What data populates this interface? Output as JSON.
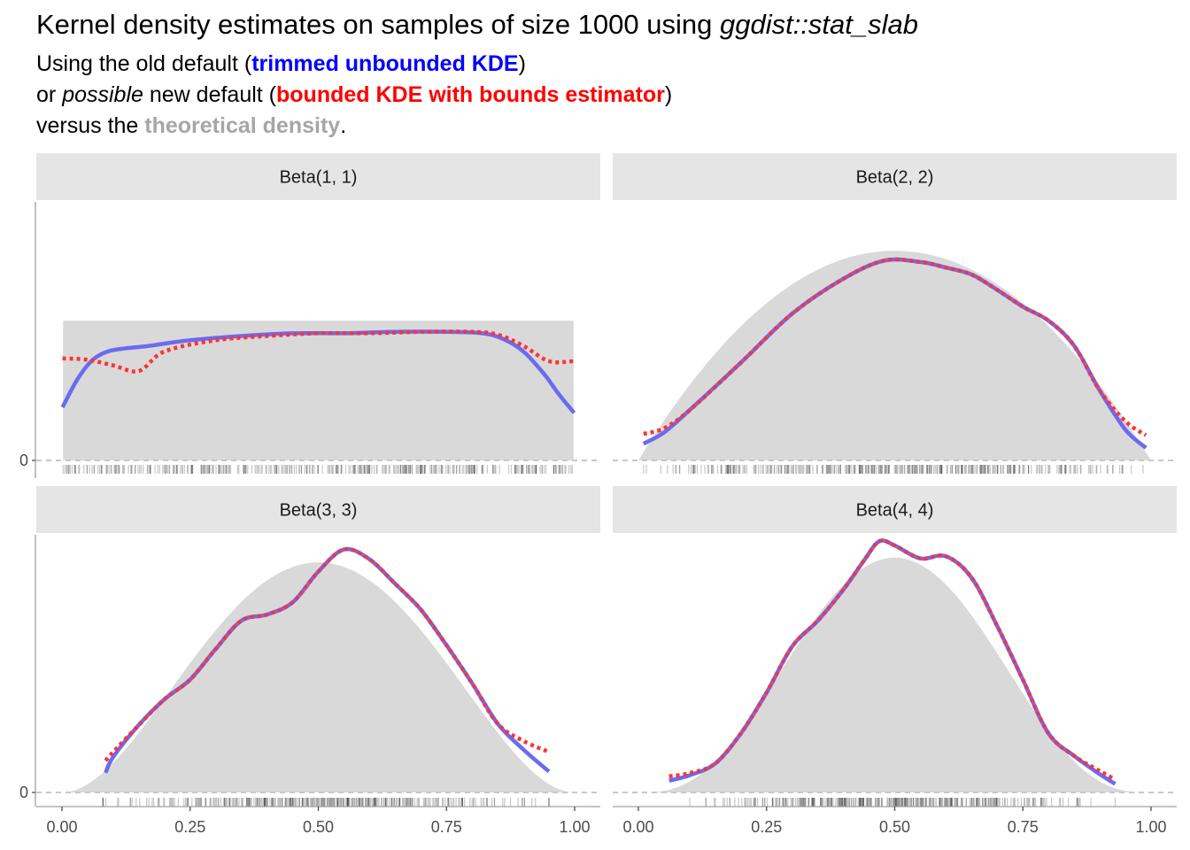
{
  "title": {
    "prefix": "Kernel density estimates on samples of size 1000 using ",
    "code": "ggdist::stat_slab"
  },
  "subtitle": {
    "line1_a": "Using the old default (",
    "line1_b": "trimmed unbounded KDE",
    "line1_c": ")",
    "line2_a": "or ",
    "line2_b": "possible",
    "line2_c": " new default (",
    "line2_d": "bounded KDE with bounds estimator",
    "line2_e": ")",
    "line3_a": "versus the ",
    "line3_b": "theoretical density",
    "line3_c": "."
  },
  "colors": {
    "theoretical": "#d9d9d9",
    "unbounded": "#6b6bf0",
    "bounded": "#ff3333",
    "strip": "#e5e5e5",
    "rug": "#000000"
  },
  "chart_data": {
    "type": "area",
    "x_ticks": [
      0,
      0.25,
      0.5,
      0.75,
      1
    ],
    "x_tick_labels": [
      "0.00",
      "0.25",
      "0.50",
      "0.75",
      "1.00"
    ],
    "xlim": [
      0,
      1
    ],
    "y_tick_label": "0",
    "legend": "none (encoded in subtitle colors)",
    "panels": [
      {
        "label": "Beta(1, 1)",
        "a": 1,
        "b": 1,
        "ymax": 1.85,
        "sample_range": [
          0.001,
          0.999
        ],
        "unbounded": [
          [
            0.001,
            0.38
          ],
          [
            0.03,
            0.58
          ],
          [
            0.06,
            0.72
          ],
          [
            0.09,
            0.78
          ],
          [
            0.12,
            0.8
          ],
          [
            0.17,
            0.82
          ],
          [
            0.25,
            0.86
          ],
          [
            0.35,
            0.89
          ],
          [
            0.45,
            0.91
          ],
          [
            0.55,
            0.91
          ],
          [
            0.65,
            0.92
          ],
          [
            0.75,
            0.92
          ],
          [
            0.82,
            0.91
          ],
          [
            0.86,
            0.87
          ],
          [
            0.9,
            0.78
          ],
          [
            0.94,
            0.62
          ],
          [
            0.97,
            0.47
          ],
          [
            0.999,
            0.34
          ]
        ],
        "bounded": [
          [
            0.001,
            0.73
          ],
          [
            0.05,
            0.72
          ],
          [
            0.1,
            0.68
          ],
          [
            0.15,
            0.64
          ],
          [
            0.2,
            0.78
          ],
          [
            0.3,
            0.86
          ],
          [
            0.4,
            0.89
          ],
          [
            0.5,
            0.91
          ],
          [
            0.6,
            0.91
          ],
          [
            0.7,
            0.92
          ],
          [
            0.8,
            0.92
          ],
          [
            0.85,
            0.9
          ],
          [
            0.9,
            0.82
          ],
          [
            0.95,
            0.71
          ],
          [
            0.999,
            0.71
          ]
        ]
      },
      {
        "label": "Beta(2, 2)",
        "a": 2,
        "b": 2,
        "ymax": 1.85,
        "sample_range": [
          0.01,
          0.99
        ],
        "unbounded": [
          [
            0.01,
            0.12
          ],
          [
            0.05,
            0.2
          ],
          [
            0.1,
            0.36
          ],
          [
            0.2,
            0.7
          ],
          [
            0.3,
            1.05
          ],
          [
            0.4,
            1.3
          ],
          [
            0.48,
            1.43
          ],
          [
            0.55,
            1.42
          ],
          [
            0.6,
            1.38
          ],
          [
            0.65,
            1.33
          ],
          [
            0.7,
            1.22
          ],
          [
            0.75,
            1.1
          ],
          [
            0.8,
            1.0
          ],
          [
            0.85,
            0.82
          ],
          [
            0.9,
            0.5
          ],
          [
            0.95,
            0.22
          ],
          [
            0.99,
            0.09
          ]
        ],
        "bounded": [
          [
            0.01,
            0.19
          ],
          [
            0.05,
            0.23
          ],
          [
            0.1,
            0.36
          ],
          [
            0.2,
            0.7
          ],
          [
            0.3,
            1.05
          ],
          [
            0.4,
            1.3
          ],
          [
            0.48,
            1.43
          ],
          [
            0.55,
            1.42
          ],
          [
            0.6,
            1.38
          ],
          [
            0.65,
            1.33
          ],
          [
            0.7,
            1.22
          ],
          [
            0.75,
            1.1
          ],
          [
            0.8,
            1.0
          ],
          [
            0.85,
            0.82
          ],
          [
            0.9,
            0.5
          ],
          [
            0.95,
            0.28
          ],
          [
            0.99,
            0.18
          ]
        ]
      },
      {
        "label": "Beta(3, 3)",
        "a": 3,
        "b": 3,
        "ymax": 2.1,
        "sample_range": [
          0.08,
          0.95
        ],
        "unbounded": [
          [
            0.085,
            0.16
          ],
          [
            0.1,
            0.29
          ],
          [
            0.15,
            0.55
          ],
          [
            0.2,
            0.76
          ],
          [
            0.25,
            0.92
          ],
          [
            0.3,
            1.17
          ],
          [
            0.35,
            1.4
          ],
          [
            0.4,
            1.45
          ],
          [
            0.45,
            1.55
          ],
          [
            0.5,
            1.8
          ],
          [
            0.55,
            1.98
          ],
          [
            0.6,
            1.9
          ],
          [
            0.65,
            1.7
          ],
          [
            0.7,
            1.49
          ],
          [
            0.75,
            1.2
          ],
          [
            0.8,
            0.89
          ],
          [
            0.85,
            0.56
          ],
          [
            0.9,
            0.35
          ],
          [
            0.95,
            0.17
          ]
        ],
        "bounded": [
          [
            0.085,
            0.26
          ],
          [
            0.1,
            0.33
          ],
          [
            0.15,
            0.55
          ],
          [
            0.2,
            0.76
          ],
          [
            0.25,
            0.92
          ],
          [
            0.3,
            1.17
          ],
          [
            0.35,
            1.4
          ],
          [
            0.4,
            1.45
          ],
          [
            0.45,
            1.55
          ],
          [
            0.5,
            1.8
          ],
          [
            0.55,
            1.98
          ],
          [
            0.6,
            1.9
          ],
          [
            0.65,
            1.7
          ],
          [
            0.7,
            1.49
          ],
          [
            0.75,
            1.2
          ],
          [
            0.8,
            0.89
          ],
          [
            0.85,
            0.56
          ],
          [
            0.9,
            0.42
          ],
          [
            0.95,
            0.33
          ]
        ]
      },
      {
        "label": "Beta(4, 4)",
        "a": 4,
        "b": 4,
        "ymax": 2.4,
        "sample_range": [
          0.06,
          0.93
        ],
        "unbounded": [
          [
            0.06,
            0.11
          ],
          [
            0.1,
            0.16
          ],
          [
            0.15,
            0.27
          ],
          [
            0.2,
            0.55
          ],
          [
            0.25,
            0.93
          ],
          [
            0.3,
            1.36
          ],
          [
            0.35,
            1.6
          ],
          [
            0.4,
            1.89
          ],
          [
            0.44,
            2.16
          ],
          [
            0.47,
            2.34
          ],
          [
            0.5,
            2.3
          ],
          [
            0.55,
            2.18
          ],
          [
            0.6,
            2.2
          ],
          [
            0.65,
            2.0
          ],
          [
            0.7,
            1.55
          ],
          [
            0.75,
            1.05
          ],
          [
            0.8,
            0.55
          ],
          [
            0.85,
            0.34
          ],
          [
            0.9,
            0.17
          ],
          [
            0.93,
            0.08
          ]
        ],
        "bounded": [
          [
            0.06,
            0.15
          ],
          [
            0.1,
            0.18
          ],
          [
            0.15,
            0.27
          ],
          [
            0.2,
            0.55
          ],
          [
            0.25,
            0.93
          ],
          [
            0.3,
            1.36
          ],
          [
            0.35,
            1.6
          ],
          [
            0.4,
            1.89
          ],
          [
            0.44,
            2.16
          ],
          [
            0.47,
            2.34
          ],
          [
            0.5,
            2.3
          ],
          [
            0.55,
            2.18
          ],
          [
            0.6,
            2.2
          ],
          [
            0.65,
            2.0
          ],
          [
            0.7,
            1.55
          ],
          [
            0.75,
            1.05
          ],
          [
            0.8,
            0.55
          ],
          [
            0.85,
            0.34
          ],
          [
            0.9,
            0.2
          ],
          [
            0.93,
            0.12
          ]
        ]
      }
    ]
  }
}
